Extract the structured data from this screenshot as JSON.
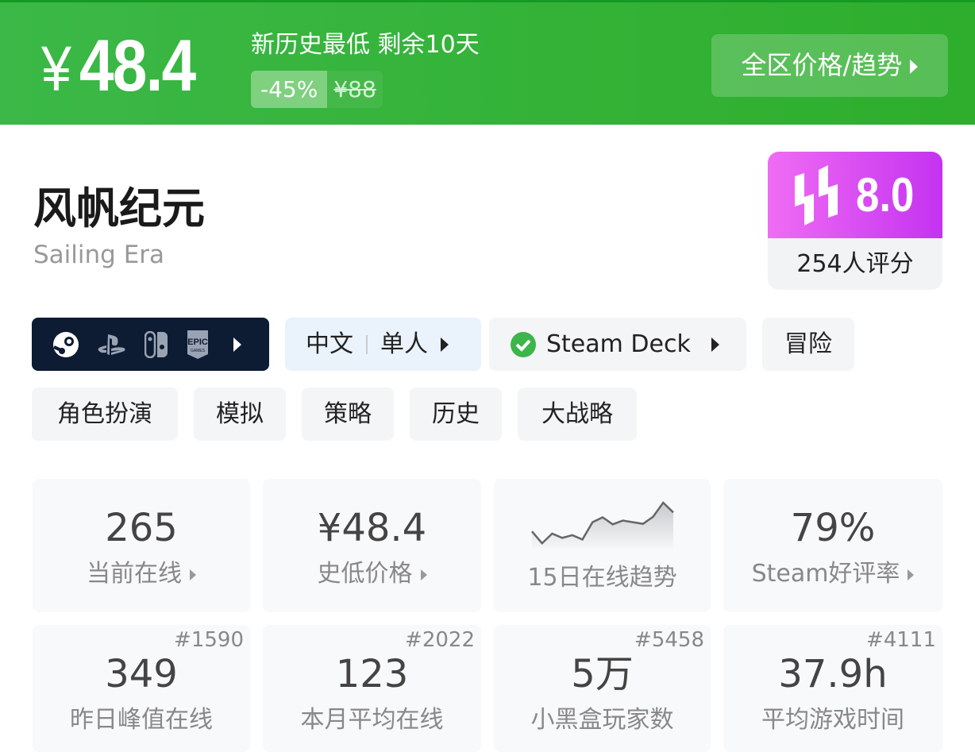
{
  "header": {
    "price": "48.4",
    "currency": "¥",
    "headline": "新历史最低 剩余10天",
    "discount": "-45%",
    "original_price": "¥88",
    "region_button": "全区价格/趋势"
  },
  "game": {
    "title": "风帆纪元",
    "subtitle": "Sailing Era"
  },
  "rating": {
    "score": "8.0",
    "count": "254人评分"
  },
  "platforms": [
    "steam-icon",
    "playstation-icon",
    "switch-icon",
    "epic-games-icon"
  ],
  "tags": {
    "language": "中文",
    "mode": "单人",
    "steam_deck": "Steam Deck",
    "genres": [
      "冒险",
      "角色扮演",
      "模拟",
      "策略",
      "历史",
      "大战略"
    ]
  },
  "stats": [
    {
      "value": "265",
      "label": "当前在线",
      "arrow": true
    },
    {
      "value": "¥48.4",
      "label": "史低价格",
      "arrow": true
    },
    {
      "value": "",
      "label": "15日在线趋势",
      "sparkline": [
        58,
        14,
        50,
        34,
        44,
        28,
        92,
        110,
        84,
        98,
        92,
        86,
        112,
        164,
        128
      ]
    },
    {
      "value": "79%",
      "label": "Steam好评率",
      "arrow": true
    },
    {
      "value": "349",
      "label": "昨日峰值在线",
      "rank": "#1590"
    },
    {
      "value": "123",
      "label": "本月平均在线",
      "rank": "#2022"
    },
    {
      "value": "5万",
      "label": "小黑盒玩家数",
      "rank": "#5458"
    },
    {
      "value": "37.9h",
      "label": "平均游戏时间",
      "rank": "#4111"
    }
  ],
  "colors": {
    "header_green": "#35b33a",
    "rating_purple": "#d94cf2",
    "platform_bg": "#0d1b33",
    "deck_check": "#3cb54a"
  }
}
